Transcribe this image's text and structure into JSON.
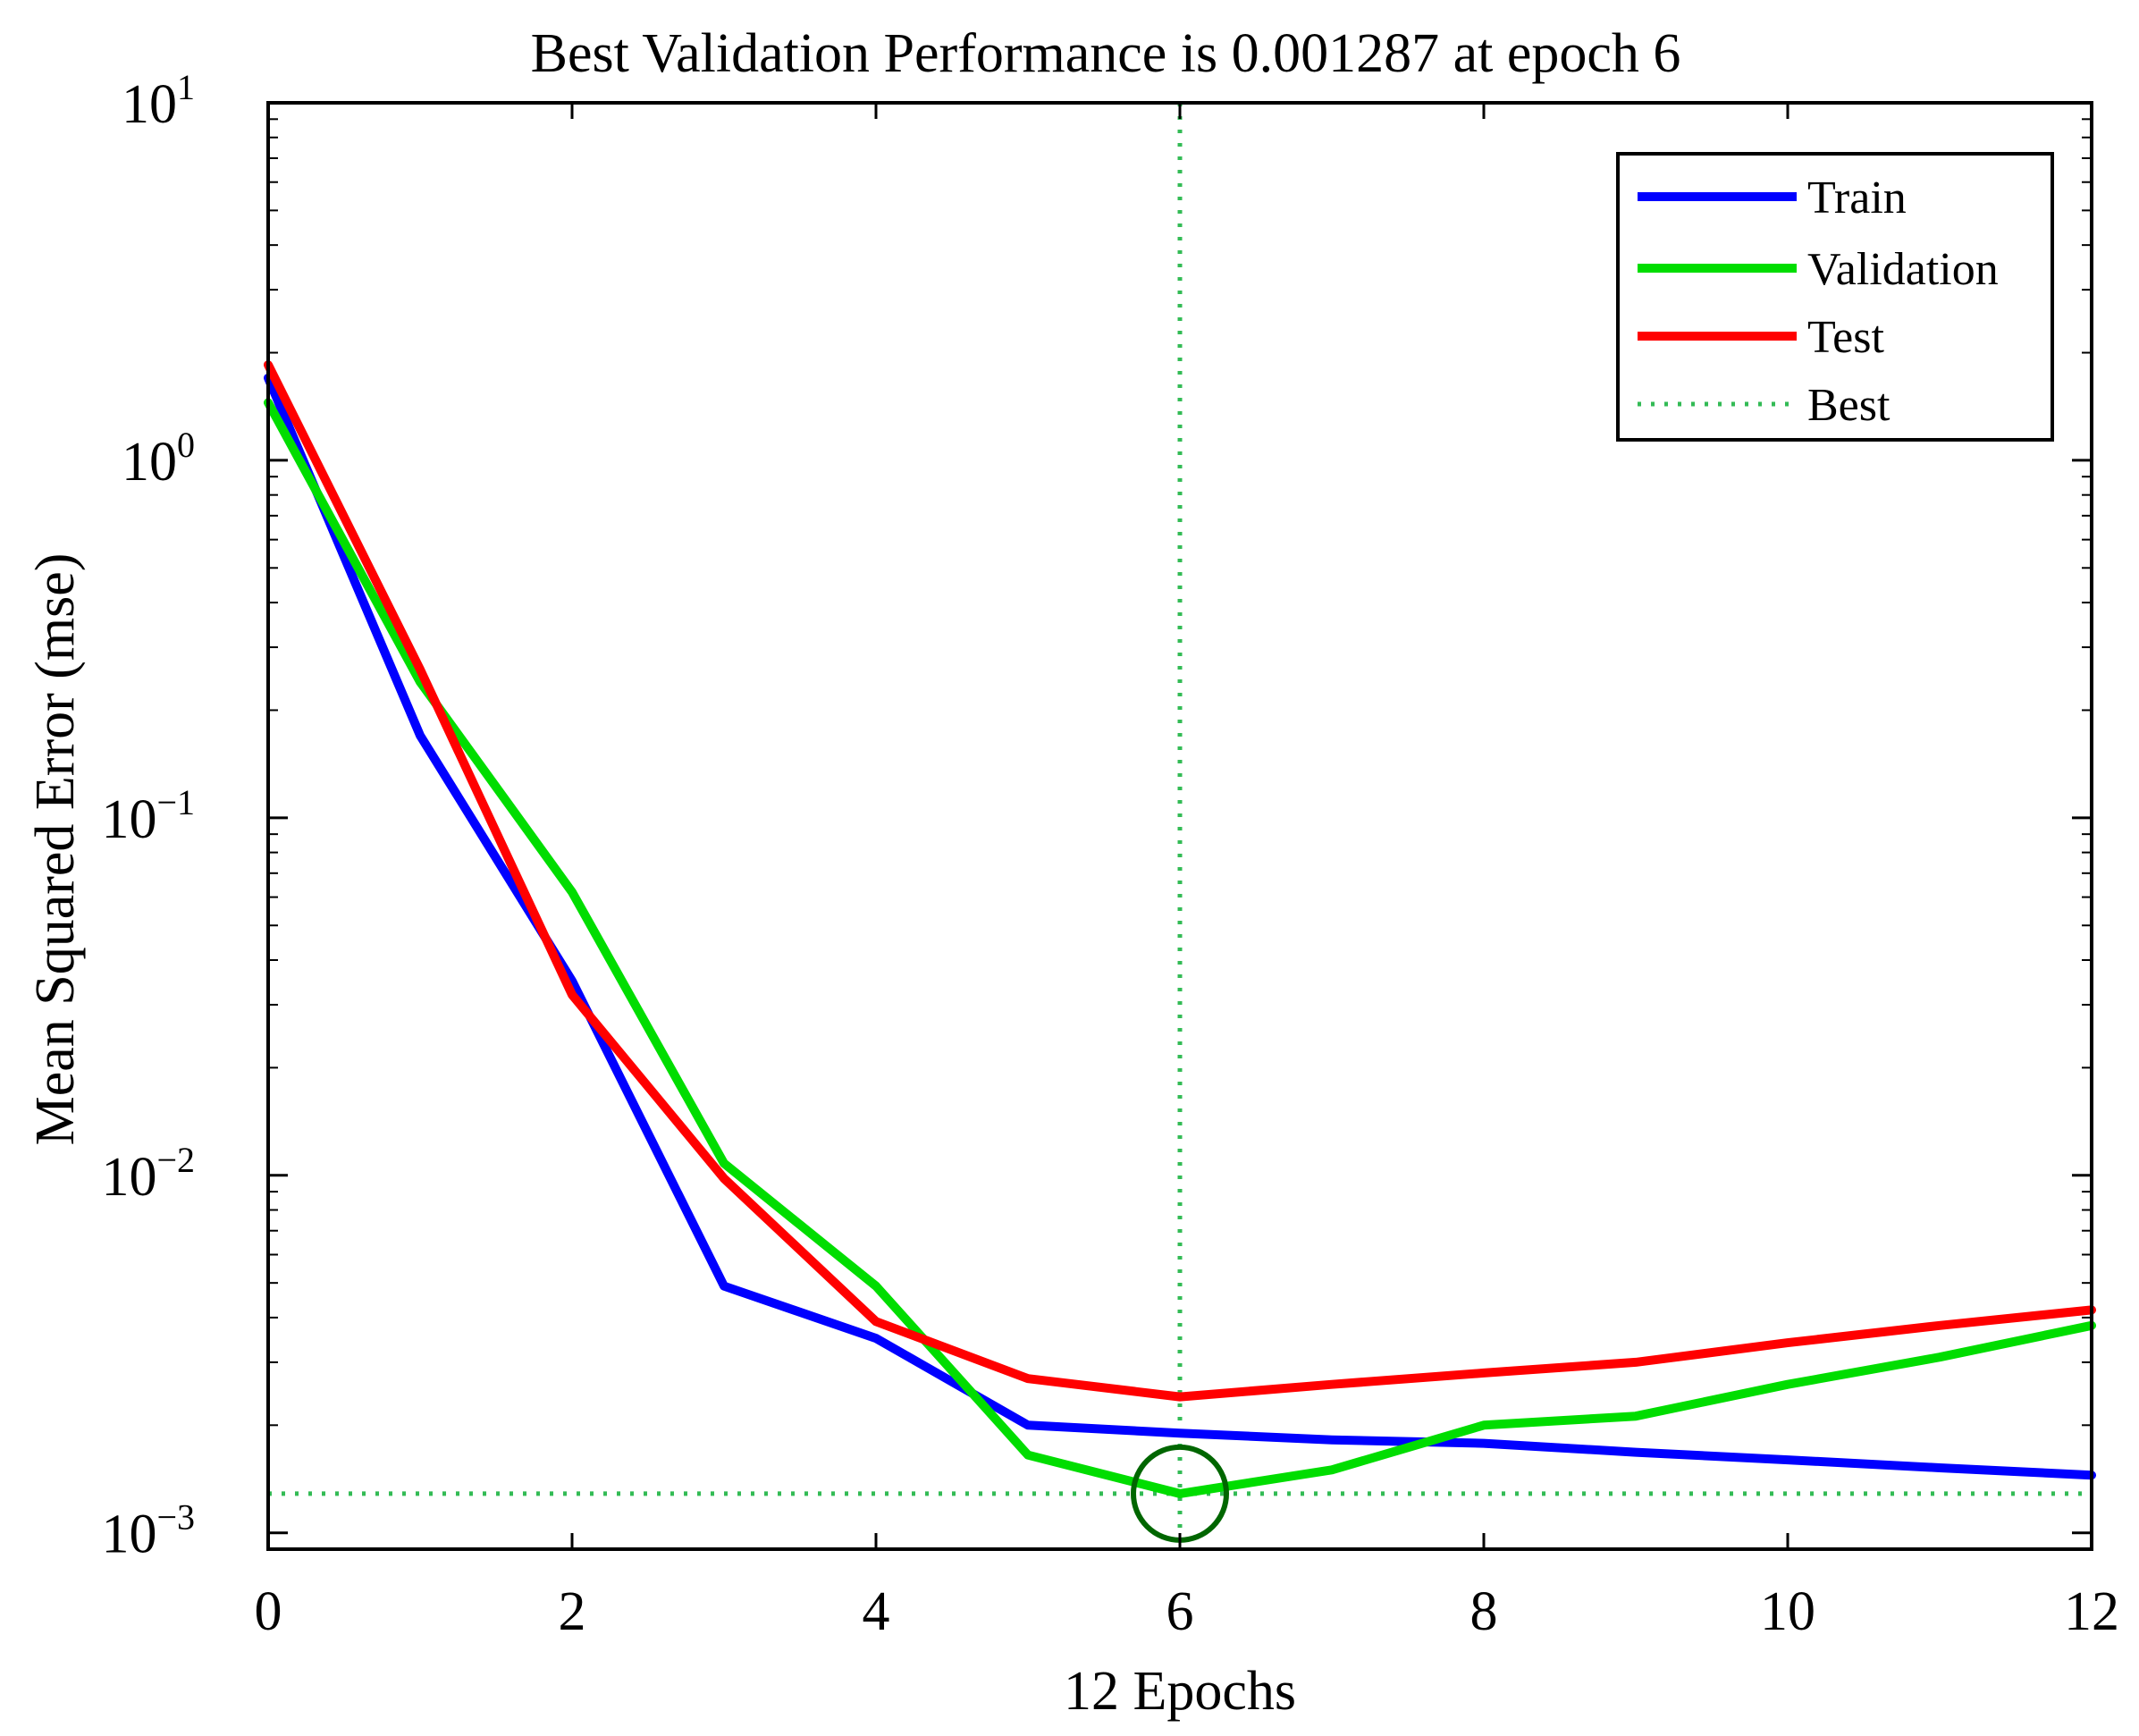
{
  "colors": {
    "train": "#0000ff",
    "validation": "#00dd00",
    "test": "#ff0000",
    "best": "#33bb55",
    "best_marker": "#006600",
    "axes": "#000000",
    "background": "#ffffff"
  },
  "chart_data": {
    "type": "line",
    "title": "Best Validation Performance is 0.001287 at epoch 6",
    "xlabel": "12 Epochs",
    "ylabel": "Mean Squared Error (mse)",
    "y_scale": "log",
    "xlim": [
      0,
      12
    ],
    "ylim": [
      0.0009,
      10
    ],
    "xticks": [
      0,
      2,
      4,
      6,
      8,
      10,
      12
    ],
    "x_tick_labels": [
      "0",
      "2",
      "4",
      "6",
      "8",
      "10",
      "12"
    ],
    "yticks": [
      0.001,
      0.01,
      0.1,
      1,
      10
    ],
    "y_tick_labels": [
      {
        "base": "10",
        "exp": "−3"
      },
      {
        "base": "10",
        "exp": "−2"
      },
      {
        "base": "10",
        "exp": "−1"
      },
      {
        "base": "10",
        "exp": "0"
      },
      {
        "base": "10",
        "exp": "1"
      }
    ],
    "grid": false,
    "legend_position": "top-right",
    "legend": [
      "Train",
      "Validation",
      "Test",
      "Best"
    ],
    "x": [
      0,
      1,
      2,
      3,
      4,
      5,
      6,
      7,
      8,
      9,
      10,
      11,
      12
    ],
    "series": [
      {
        "name": "Train",
        "color": "#0000ff",
        "values": [
          1.7,
          0.17,
          0.035,
          0.0049,
          0.0035,
          0.002,
          0.0019,
          0.00182,
          0.00178,
          0.00168,
          0.0016,
          0.00152,
          0.00145
        ]
      },
      {
        "name": "Validation",
        "color": "#00dd00",
        "values": [
          1.45,
          0.24,
          0.062,
          0.0108,
          0.0049,
          0.00165,
          0.001287,
          0.0015,
          0.002,
          0.00212,
          0.0026,
          0.0031,
          0.0038
        ]
      },
      {
        "name": "Test",
        "color": "#ff0000",
        "values": [
          1.85,
          0.26,
          0.032,
          0.0098,
          0.0039,
          0.0027,
          0.0024,
          0.0026,
          0.0028,
          0.003,
          0.0034,
          0.0038,
          0.0042
        ]
      }
    ],
    "best": {
      "epoch": 6,
      "value": 0.001287
    }
  }
}
